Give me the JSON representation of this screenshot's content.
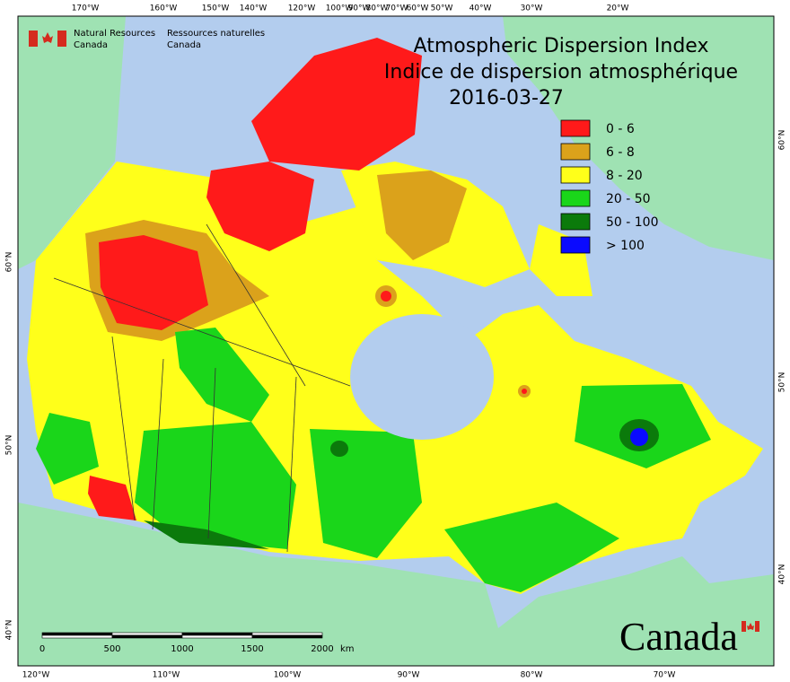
{
  "header": {
    "agency_en": [
      "Natural Resources",
      "Canada"
    ],
    "agency_fr": [
      "Ressources naturelles",
      "Canada"
    ]
  },
  "title": {
    "line1": "Atmospheric Dispersion Index",
    "line2": "Indice de dispersion atmosphérique",
    "date": "2016-03-27"
  },
  "legend": [
    {
      "label": "0 - 6",
      "color": "#ff1a1a"
    },
    {
      "label": "6 - 8",
      "color": "#dba21b"
    },
    {
      "label": "8 - 20",
      "color": "#ffff1a"
    },
    {
      "label": "20 - 50",
      "color": "#1ad61a"
    },
    {
      "label": "50 - 100",
      "color": "#0b7a0b"
    },
    {
      "label": "> 100",
      "color": "#0a0aff"
    }
  ],
  "graticule": {
    "top": [
      "170°W",
      "160°W",
      "150°W",
      "140°W",
      "120°W",
      "100°W",
      "90°W",
      "80°W",
      "70°W",
      "60°W",
      "50°W",
      "40°W",
      "30°W",
      "20°W"
    ],
    "bottom": [
      "120°W",
      "110°W",
      "100°W",
      "90°W",
      "80°W",
      "70°W"
    ],
    "left": [
      "60°N",
      "50°N",
      "40°N"
    ],
    "right": [
      "60°N",
      "50°N",
      "40°N"
    ]
  },
  "scale_bar": {
    "ticks": [
      "0",
      "500",
      "1000",
      "1500",
      "2000"
    ],
    "unit": "km"
  },
  "wordmark": "Canada"
}
